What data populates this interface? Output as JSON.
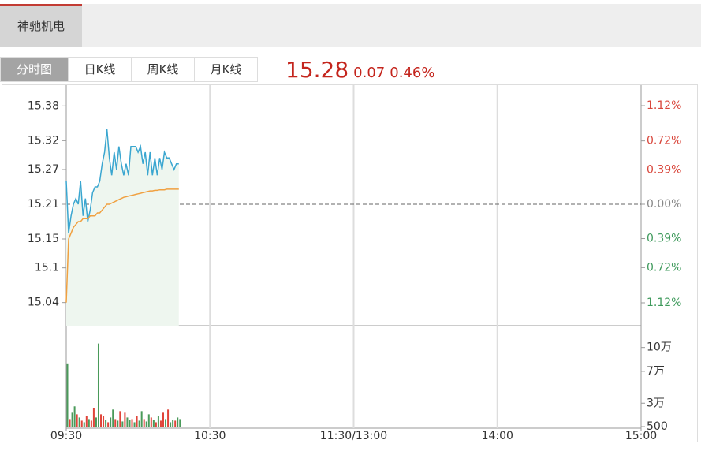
{
  "header": {
    "stock_name": "神驰机电",
    "tabs": [
      "分时图",
      "日K线",
      "周K线",
      "月K线"
    ],
    "active_tab": 0,
    "price": "15.28",
    "change": "0.07",
    "change_percent": "0.46%"
  },
  "chart_data": {
    "type": "line",
    "x": [
      0,
      1,
      2,
      3,
      4,
      5,
      6,
      7,
      8,
      9,
      10,
      11,
      12,
      13,
      14,
      15,
      16,
      17,
      18,
      19,
      20,
      21,
      22,
      23,
      24,
      25,
      26,
      27,
      28,
      29,
      30,
      31,
      32,
      33,
      34,
      35,
      36,
      37,
      38,
      39,
      40,
      41,
      42,
      43,
      44,
      45,
      46,
      47
    ],
    "xlim": [
      0,
      240
    ],
    "xticks": [
      {
        "value": 0,
        "label": "09:30"
      },
      {
        "value": 60,
        "label": "10:30"
      },
      {
        "value": 120,
        "label": "11:30/13:00"
      },
      {
        "value": 180,
        "label": "14:00"
      },
      {
        "value": 240,
        "label": "15:00"
      }
    ],
    "ylim": [
      15.0,
      15.42
    ],
    "yticks": [
      15.38,
      15.32,
      15.27,
      15.21,
      15.15,
      15.1,
      15.04
    ],
    "y2lim": [
      -1.38,
      1.38
    ],
    "y2ticks": [
      {
        "value": 1.12,
        "label": "1.12%"
      },
      {
        "value": 0.72,
        "label": "0.72%"
      },
      {
        "value": 0.39,
        "label": "0.39%"
      },
      {
        "value": 0,
        "label": "0.00%"
      },
      {
        "value": -0.39,
        "label": "0.39%"
      },
      {
        "value": -0.72,
        "label": "0.72%"
      },
      {
        "value": -1.12,
        "label": "1.12%"
      }
    ],
    "up_color": "#d9463b",
    "down_color": "#3f9a5c",
    "flat_color": "#888888",
    "area_color": "#eef6ef",
    "series": [
      {
        "color": "#3aa6d0",
        "values": [
          15.25,
          15.16,
          15.19,
          15.21,
          15.22,
          15.21,
          15.25,
          15.19,
          15.22,
          15.18,
          15.2,
          15.23,
          15.24,
          15.24,
          15.25,
          15.28,
          15.3,
          15.34,
          15.29,
          15.26,
          15.3,
          15.27,
          15.31,
          15.28,
          15.26,
          15.28,
          15.26,
          15.31,
          15.31,
          15.31,
          15.3,
          15.31,
          15.28,
          15.3,
          15.26,
          15.3,
          15.26,
          15.29,
          15.26,
          15.29,
          15.27,
          15.3,
          15.29,
          15.29,
          15.28,
          15.27,
          15.28,
          15.28
        ]
      },
      {
        "color": "#f0a040",
        "values": [
          15.04,
          15.15,
          15.16,
          15.17,
          15.175,
          15.18,
          15.18,
          15.185,
          15.185,
          15.185,
          15.19,
          15.19,
          15.19,
          15.195,
          15.195,
          15.2,
          15.205,
          15.21,
          15.21,
          15.212,
          15.214,
          15.216,
          15.218,
          15.22,
          15.222,
          15.223,
          15.224,
          15.225,
          15.226,
          15.227,
          15.228,
          15.229,
          15.23,
          15.231,
          15.232,
          15.233,
          15.233,
          15.234,
          15.234,
          15.235,
          15.235,
          15.235,
          15.236,
          15.236,
          15.236,
          15.236,
          15.236,
          15.236
        ]
      }
    ],
    "volume": {
      "ylim": [
        0,
        120000
      ],
      "yticks": [
        {
          "value": 100000,
          "label": "10万"
        },
        {
          "value": 70000,
          "label": "7万"
        },
        {
          "value": 30000,
          "label": "3万"
        },
        500
      ],
      "values": [
        80000,
        10000,
        18000,
        26000,
        16000,
        12000,
        8000,
        6000,
        14000,
        10000,
        8000,
        24000,
        12000,
        105000,
        16000,
        14000,
        9000,
        6000,
        12000,
        22000,
        10000,
        8000,
        20000,
        7000,
        18000,
        12000,
        9000,
        10000,
        6000,
        14000,
        8000,
        20000,
        10000,
        7000,
        16000,
        12000,
        9000,
        6000,
        14000,
        8000,
        18000,
        10000,
        22000,
        6000,
        9000,
        8000,
        12000,
        10000
      ],
      "colors": [
        "#4a9a5a",
        "#e0443a",
        "#4a9a5a",
        "#4a9a5a",
        "#e0443a",
        "#4a9a5a",
        "#e0443a",
        "#4a9a5a",
        "#e0443a",
        "#4a9a5a",
        "#e0443a",
        "#e0443a",
        "#4a9a5a",
        "#4a9a5a",
        "#e0443a",
        "#e0443a",
        "#4a9a5a",
        "#e0443a",
        "#4a9a5a",
        "#4a9a5a",
        "#e0443a",
        "#4a9a5a",
        "#e0443a",
        "#4a9a5a",
        "#e0443a",
        "#4a9a5a",
        "#4a9a5a",
        "#e0443a",
        "#4a9a5a",
        "#e0443a",
        "#4a9a5a",
        "#4a9a5a",
        "#e0443a",
        "#4a9a5a",
        "#4a9a5a",
        "#e0443a",
        "#4a9a5a",
        "#e0443a",
        "#4a9a5a",
        "#e0443a",
        "#e0443a",
        "#4a9a5a",
        "#e0443a",
        "#4a9a5a",
        "#4a9a5a",
        "#e0443a",
        "#4a9a5a",
        "#4a9a5a"
      ]
    }
  }
}
